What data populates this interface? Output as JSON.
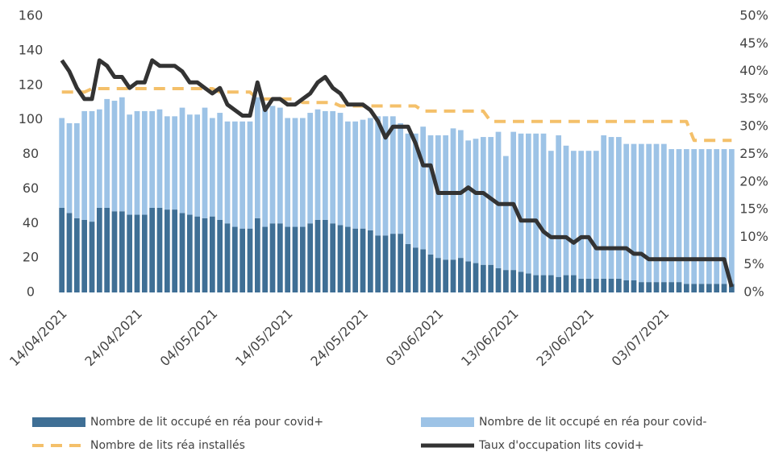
{
  "chart_data": {
    "type": "bar",
    "stacked": true,
    "categories": [
      "14/04/2021",
      null,
      null,
      null,
      null,
      null,
      null,
      null,
      null,
      null,
      "24/04/2021",
      null,
      null,
      null,
      null,
      null,
      null,
      null,
      null,
      null,
      "04/05/2021",
      null,
      null,
      null,
      null,
      null,
      null,
      null,
      null,
      null,
      "14/05/2021",
      null,
      null,
      null,
      null,
      null,
      null,
      null,
      null,
      null,
      "24/05/2021",
      null,
      null,
      null,
      null,
      null,
      null,
      null,
      null,
      null,
      "03/06/2021",
      null,
      null,
      null,
      null,
      null,
      null,
      null,
      null,
      null,
      "13/06/2021",
      null,
      null,
      null,
      null,
      null,
      null,
      null,
      null,
      null,
      "23/06/2021",
      null,
      null,
      null,
      null,
      null,
      null,
      null,
      null,
      null,
      "03/07/2021",
      null,
      null,
      null,
      null,
      null,
      null,
      null,
      null,
      null
    ],
    "series": [
      {
        "name": "Nombre de lit occupé en réa pour covid+",
        "color": "#3f6f95",
        "type": "bar",
        "values": [
          49,
          46,
          43,
          42,
          41,
          49,
          49,
          47,
          47,
          45,
          45,
          45,
          49,
          49,
          48,
          48,
          46,
          45,
          44,
          43,
          44,
          42,
          40,
          38,
          37,
          37,
          43,
          38,
          40,
          40,
          38,
          38,
          38,
          40,
          42,
          42,
          40,
          39,
          38,
          37,
          37,
          36,
          33,
          33,
          34,
          34,
          28,
          26,
          25,
          22,
          20,
          19,
          19,
          20,
          18,
          17,
          16,
          16,
          14,
          13,
          13,
          12,
          11,
          10,
          10,
          10,
          9,
          10,
          10,
          8,
          8,
          8,
          8,
          8,
          8,
          7,
          7,
          6,
          6,
          6,
          6,
          6,
          6,
          5,
          5,
          5,
          5,
          5,
          5,
          5
        ]
      },
      {
        "name": "Nombre de lit occupé en réa pour covid-",
        "color": "#9dc3e6",
        "type": "bar",
        "values": [
          52,
          52,
          55,
          63,
          64,
          57,
          63,
          64,
          66,
          58,
          60,
          60,
          56,
          57,
          54,
          54,
          61,
          58,
          59,
          64,
          57,
          62,
          59,
          61,
          62,
          62,
          70,
          70,
          68,
          67,
          63,
          63,
          63,
          64,
          64,
          63,
          65,
          65,
          61,
          62,
          63,
          65,
          69,
          69,
          68,
          64,
          64,
          66,
          71,
          69,
          71,
          72,
          76,
          74,
          70,
          72,
          74,
          74,
          79,
          66,
          80,
          80,
          81,
          82,
          82,
          72,
          82,
          75,
          72,
          74,
          74,
          74,
          83,
          82,
          82,
          79,
          79,
          80,
          80,
          80,
          80,
          77,
          77,
          78,
          78,
          78,
          78,
          78,
          78,
          78
        ]
      },
      {
        "name": "Nombre de lits réa installés",
        "color": "#f4c06a",
        "type": "line",
        "dashed": true,
        "values": [
          116,
          116,
          116,
          116,
          118,
          118,
          118,
          118,
          118,
          118,
          118,
          118,
          118,
          118,
          118,
          118,
          118,
          118,
          118,
          118,
          118,
          116,
          116,
          116,
          116,
          116,
          112,
          112,
          112,
          112,
          112,
          112,
          110,
          110,
          110,
          110,
          110,
          108,
          108,
          108,
          108,
          108,
          108,
          108,
          108,
          108,
          108,
          108,
          105,
          105,
          105,
          105,
          105,
          105,
          105,
          105,
          105,
          99,
          99,
          99,
          99,
          99,
          99,
          99,
          99,
          99,
          99,
          99,
          99,
          99,
          99,
          99,
          99,
          99,
          99,
          99,
          99,
          99,
          99,
          99,
          99,
          99,
          99,
          99,
          88,
          88,
          88,
          88,
          88,
          88
        ]
      },
      {
        "name": "Taux d'occupation lits covid+",
        "color": "#333333",
        "type": "line",
        "axis": "y2",
        "values": [
          42,
          40,
          37,
          35,
          35,
          42,
          41,
          39,
          39,
          37,
          38,
          38,
          42,
          41,
          41,
          41,
          40,
          38,
          38,
          37,
          36,
          37,
          34,
          33,
          32,
          32,
          38,
          33,
          35,
          35,
          34,
          34,
          35,
          36,
          38,
          39,
          37,
          36,
          34,
          34,
          34,
          33,
          31,
          28,
          30,
          30,
          30,
          27,
          23,
          23,
          18,
          18,
          18,
          18,
          19,
          18,
          18,
          17,
          16,
          16,
          16,
          13,
          13,
          13,
          11,
          10,
          10,
          10,
          9,
          10,
          10,
          8,
          8,
          8,
          8,
          8,
          7,
          7,
          6,
          6,
          6,
          6,
          6,
          6,
          6,
          6,
          6,
          6,
          6,
          1
        ]
      }
    ],
    "ylim": [
      0,
      160
    ],
    "yticks": [
      0,
      20,
      40,
      60,
      80,
      100,
      120,
      140,
      160
    ],
    "y2lim": [
      0,
      50
    ],
    "y2ticks": [
      {
        "value": 0,
        "label": "0%"
      },
      {
        "value": 5,
        "label": "5%"
      },
      {
        "value": 10,
        "label": "10%"
      },
      {
        "value": 15,
        "label": "15%"
      },
      {
        "value": 20,
        "label": "20%"
      },
      {
        "value": 25,
        "label": "25%"
      },
      {
        "value": 30,
        "label": "30%"
      },
      {
        "value": 35,
        "label": "35%"
      },
      {
        "value": 40,
        "label": "40%"
      },
      {
        "value": 45,
        "label": "45%"
      },
      {
        "value": 50,
        "label": "50%"
      }
    ],
    "grid": false,
    "legend": "bottom"
  }
}
